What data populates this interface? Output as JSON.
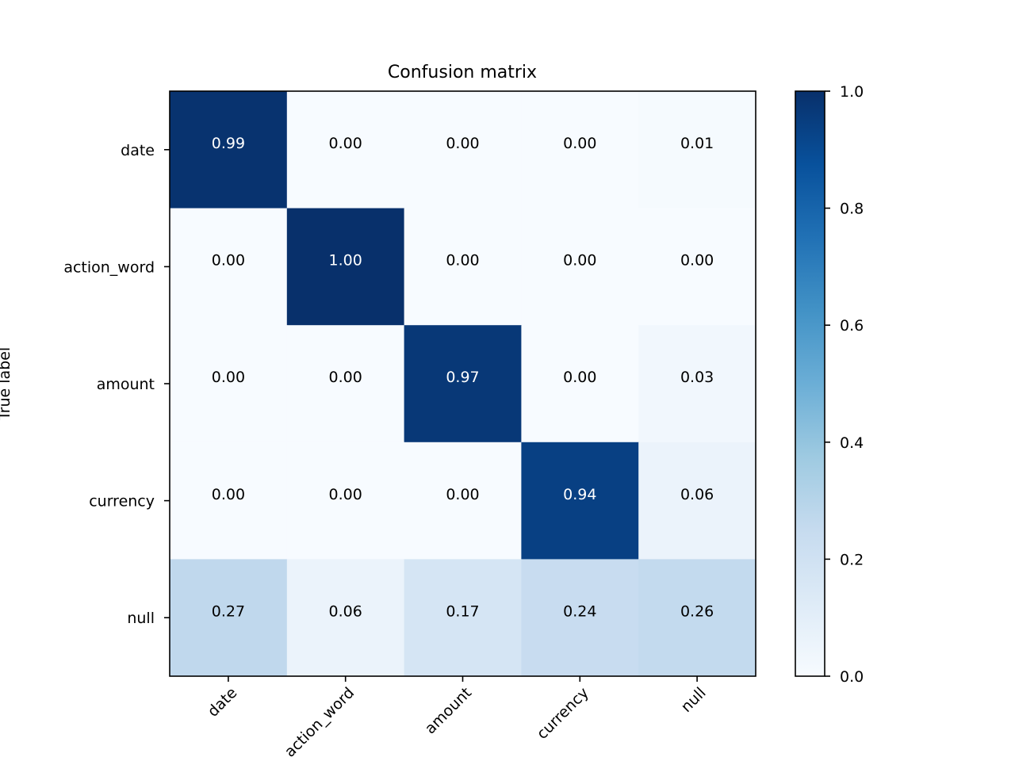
{
  "chart_data": {
    "type": "heatmap",
    "title": "Confusion matrix",
    "xlabel": "",
    "ylabel": "True label",
    "x_categories": [
      "date",
      "action_word",
      "amount",
      "currency",
      "null"
    ],
    "y_categories": [
      "date",
      "action_word",
      "amount",
      "currency",
      "null"
    ],
    "values": [
      [
        0.99,
        0.0,
        0.0,
        0.0,
        0.01
      ],
      [
        0.0,
        1.0,
        0.0,
        0.0,
        0.0
      ],
      [
        0.0,
        0.0,
        0.97,
        0.0,
        0.03
      ],
      [
        0.0,
        0.0,
        0.0,
        0.94,
        0.06
      ],
      [
        0.27,
        0.06,
        0.17,
        0.24,
        0.26
      ]
    ],
    "colormap": "Blues",
    "colorbar": {
      "range": [
        0.0,
        1.0
      ],
      "ticks": [
        "0.0",
        "0.2",
        "0.4",
        "0.6",
        "0.8",
        "1.0"
      ]
    },
    "text_color_light": "#ffffff",
    "text_color_dark": "#000000",
    "grid": false
  }
}
